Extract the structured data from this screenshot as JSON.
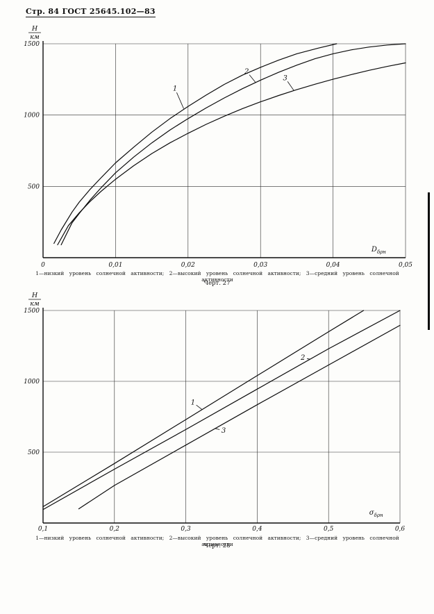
{
  "page": {
    "header": "Стр. 84 ГОСТ 25645.102—83"
  },
  "chart_data": [
    {
      "type": "line",
      "fig_label": "Черт. 27",
      "caption": "1—низкий уровень солнечной активности; 2—высокий уровень солнечной активности; 3—средний уровень солнечной активности",
      "y_axis_unit_num": "Н",
      "y_axis_unit_den": "км",
      "x_axis_symbol": "D",
      "x_axis_symbol_sub": "δρн",
      "xlabel_pos": [
        0.0453,
        45
      ],
      "xlim": [
        0,
        0.05
      ],
      "ylim": [
        0,
        1500
      ],
      "grid": true,
      "xticks": [
        {
          "v": 0,
          "label": "0"
        },
        {
          "v": 0.01,
          "label": "0,01"
        },
        {
          "v": 0.02,
          "label": "0,02"
        },
        {
          "v": 0.03,
          "label": "0,03"
        },
        {
          "v": 0.04,
          "label": "0,04"
        },
        {
          "v": 0.05,
          "label": "0,05"
        }
      ],
      "yticks": [
        {
          "v": 500,
          "label": "500"
        },
        {
          "v": 1000,
          "label": "1000"
        },
        {
          "v": 1500,
          "label": "1500"
        }
      ],
      "series": [
        {
          "name": "1",
          "label_pos": [
            0.0182,
            1185
          ],
          "leader_to": [
            0.0194,
            1045
          ],
          "points": [
            [
              0.0015,
              100
            ],
            [
              0.0025,
              195
            ],
            [
              0.004,
              320
            ],
            [
              0.005,
              390
            ],
            [
              0.0065,
              480
            ],
            [
              0.008,
              560
            ],
            [
              0.01,
              665
            ],
            [
              0.0125,
              775
            ],
            [
              0.015,
              880
            ],
            [
              0.0175,
              975
            ],
            [
              0.02,
              1060
            ],
            [
              0.0225,
              1140
            ],
            [
              0.025,
              1215
            ],
            [
              0.0275,
              1280
            ],
            [
              0.03,
              1335
            ],
            [
              0.0325,
              1385
            ],
            [
              0.035,
              1430
            ],
            [
              0.038,
              1470
            ],
            [
              0.0405,
              1500
            ]
          ]
        },
        {
          "name": "2",
          "label_pos": [
            0.0281,
            1305
          ],
          "leader_to": [
            0.0293,
            1230
          ],
          "points": [
            [
              0.0025,
              90
            ],
            [
              0.004,
              245
            ],
            [
              0.005,
              310
            ],
            [
              0.0065,
              405
            ],
            [
              0.008,
              490
            ],
            [
              0.01,
              595
            ],
            [
              0.0125,
              705
            ],
            [
              0.015,
              805
            ],
            [
              0.0175,
              895
            ],
            [
              0.02,
              975
            ],
            [
              0.0225,
              1050
            ],
            [
              0.025,
              1120
            ],
            [
              0.0275,
              1185
            ],
            [
              0.03,
              1245
            ],
            [
              0.0325,
              1300
            ],
            [
              0.035,
              1350
            ],
            [
              0.0375,
              1395
            ],
            [
              0.04,
              1430
            ],
            [
              0.0425,
              1457
            ],
            [
              0.045,
              1477
            ],
            [
              0.0475,
              1491
            ],
            [
              0.05,
              1500
            ]
          ]
        },
        {
          "name": "3",
          "label_pos": [
            0.0334,
            1260
          ],
          "leader_to": [
            0.0346,
            1172
          ],
          "points": [
            [
              0.002,
              90
            ],
            [
              0.0035,
              225
            ],
            [
              0.005,
              315
            ],
            [
              0.0065,
              395
            ],
            [
              0.008,
              465
            ],
            [
              0.01,
              550
            ],
            [
              0.0125,
              645
            ],
            [
              0.015,
              730
            ],
            [
              0.0175,
              805
            ],
            [
              0.02,
              872
            ],
            [
              0.0225,
              935
            ],
            [
              0.025,
              992
            ],
            [
              0.0275,
              1045
            ],
            [
              0.03,
              1093
            ],
            [
              0.0325,
              1137
            ],
            [
              0.035,
              1178
            ],
            [
              0.0375,
              1216
            ],
            [
              0.04,
              1251
            ],
            [
              0.0425,
              1284
            ],
            [
              0.045,
              1314
            ],
            [
              0.0475,
              1341
            ],
            [
              0.05,
              1366
            ]
          ]
        }
      ]
    },
    {
      "type": "line",
      "fig_label": "Черт. 28",
      "caption": "1—низкий уровень солнечной активности; 2—высокий уровень солнечной активности; 3—средний уровень солнечной активности",
      "y_axis_unit_num": "Н",
      "y_axis_unit_den": "км",
      "x_axis_symbol": "σ",
      "x_axis_symbol_sub": "δρн",
      "xlabel_pos": [
        0.557,
        60
      ],
      "xlim": [
        0.1,
        0.6
      ],
      "ylim": [
        0,
        1500
      ],
      "grid": true,
      "xticks": [
        {
          "v": 0.1,
          "label": "0,1"
        },
        {
          "v": 0.2,
          "label": "0,2"
        },
        {
          "v": 0.3,
          "label": "0,3"
        },
        {
          "v": 0.4,
          "label": "0,4"
        },
        {
          "v": 0.5,
          "label": "0,5"
        },
        {
          "v": 0.6,
          "label": "0,6"
        }
      ],
      "yticks": [
        {
          "v": 500,
          "label": "500"
        },
        {
          "v": 1000,
          "label": "1000"
        },
        {
          "v": 1500,
          "label": "1500"
        }
      ],
      "series": [
        {
          "name": "1",
          "label_pos": [
            0.31,
            850
          ],
          "leader_to": [
            0.323,
            800
          ],
          "points": [
            [
              0.1,
              115
            ],
            [
              0.2,
              420
            ],
            [
              0.3,
              730
            ],
            [
              0.4,
              1040
            ],
            [
              0.5,
              1350
            ],
            [
              0.549,
              1500
            ]
          ]
        },
        {
          "name": "2",
          "label_pos": [
            0.464,
            1166
          ],
          "leader_to": [
            0.474,
            1156
          ],
          "points": [
            [
              0.1,
              95
            ],
            [
              0.2,
              380
            ],
            [
              0.3,
              660
            ],
            [
              0.4,
              945
            ],
            [
              0.5,
              1230
            ],
            [
              0.6,
              1500
            ]
          ]
        },
        {
          "name": "3",
          "label_pos": [
            0.353,
            652
          ],
          "leader_to": [
            0.341,
            667
          ],
          "points": [
            [
              0.15,
              100
            ],
            [
              0.2,
              265
            ],
            [
              0.3,
              550
            ],
            [
              0.4,
              835
            ],
            [
              0.5,
              1115
            ],
            [
              0.6,
              1395
            ]
          ]
        }
      ]
    }
  ]
}
